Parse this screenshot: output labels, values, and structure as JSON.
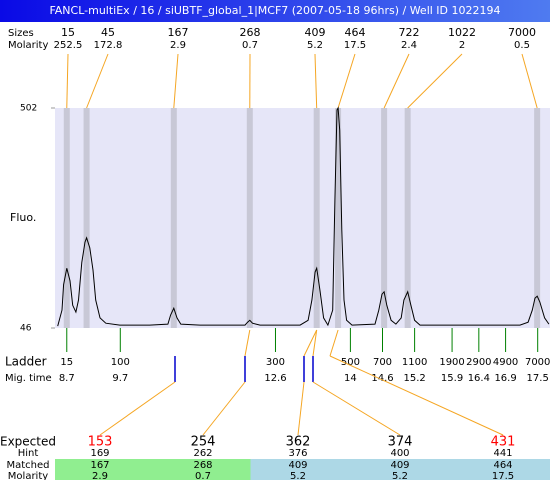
{
  "title": "FANCL-multiEx / 16 / siUBTF_global_1|MCF7 (2007-05-18 96hrs) / Well ID 1022194",
  "chart_data": {
    "type": "electropherogram",
    "y_label": "Fluo.",
    "ylim": [
      46,
      502
    ],
    "yticks": [
      46,
      502
    ],
    "xlim": [
      8.48,
      17.73
    ],
    "trace": {
      "color": "#000000",
      "x": [
        8.53,
        8.61,
        8.64,
        8.7,
        8.76,
        8.81,
        8.87,
        8.92,
        8.98,
        9.04,
        9.07,
        9.13,
        9.19,
        9.24,
        9.32,
        9.43,
        9.69,
        10.25,
        10.59,
        10.64,
        10.7,
        10.76,
        10.83,
        11.19,
        12.03,
        12.08,
        12.12,
        12.17,
        12.31,
        13.06,
        13.21,
        13.28,
        13.34,
        13.37,
        13.43,
        13.5,
        13.58,
        13.67,
        13.71,
        13.75,
        13.77,
        13.8,
        13.84,
        13.88,
        13.93,
        14.03,
        14.46,
        14.53,
        14.59,
        14.63,
        14.68,
        14.76,
        14.85,
        14.95,
        15.0,
        15.07,
        15.13,
        15.2,
        15.3,
        17.17,
        17.32,
        17.4,
        17.45,
        17.49,
        17.54,
        17.63,
        17.71
      ],
      "y": [
        50,
        83,
        136,
        170,
        144,
        93,
        79,
        104,
        182,
        224,
        233,
        212,
        166,
        104,
        67,
        56,
        52,
        52,
        54,
        73,
        87,
        67,
        54,
        52,
        52,
        58,
        62,
        56,
        52,
        52,
        62,
        104,
        162,
        170,
        125,
        67,
        52,
        83,
        311,
        498,
        502,
        456,
        249,
        104,
        62,
        52,
        54,
        83,
        116,
        121,
        93,
        62,
        54,
        67,
        104,
        121,
        93,
        62,
        52,
        52,
        58,
        83,
        108,
        112,
        100,
        67,
        54
      ]
    },
    "peaks": {
      "size_label": "Sizes",
      "molarity_label": "Molarity",
      "x": [
        8.7,
        9.07,
        10.7,
        12.12,
        13.37,
        13.77,
        14.63,
        15.07,
        17.49
      ],
      "sizes": [
        15,
        45,
        167,
        268,
        409,
        464,
        722,
        1022,
        7000
      ],
      "molarity": [
        252.5,
        172.8,
        2.9,
        0.7,
        5.2,
        17.5,
        2.4,
        2,
        0.5
      ]
    },
    "ladder": {
      "label": "Ladder",
      "time_label": "Mig. time",
      "color": "#008000",
      "sizes": [
        15,
        100,
        300,
        500,
        700,
        1100,
        1900,
        2900,
        4900,
        7000
      ],
      "times": [
        8.7,
        9.7,
        12.6,
        14,
        14.6,
        15.2,
        15.9,
        16.4,
        16.9,
        17.5
      ]
    }
  },
  "expected_table": {
    "labels": [
      "Expected",
      "Hint",
      "Matched",
      "Molarity"
    ],
    "expected": [
      153,
      254,
      362,
      374,
      431
    ],
    "expected_colors": [
      "#ff0000",
      "#000000",
      "#000000",
      "#000000",
      "#ff0000"
    ],
    "hint": [
      169,
      262,
      376,
      400,
      441
    ],
    "matched": [
      167,
      268,
      409,
      409,
      464
    ],
    "molarity": [
      2.9,
      0.7,
      5.2,
      5.2,
      17.5
    ],
    "match_colors": [
      "#90ee90",
      "#90ee90",
      "#add8e6",
      "#add8e6",
      "#add8e6"
    ]
  }
}
